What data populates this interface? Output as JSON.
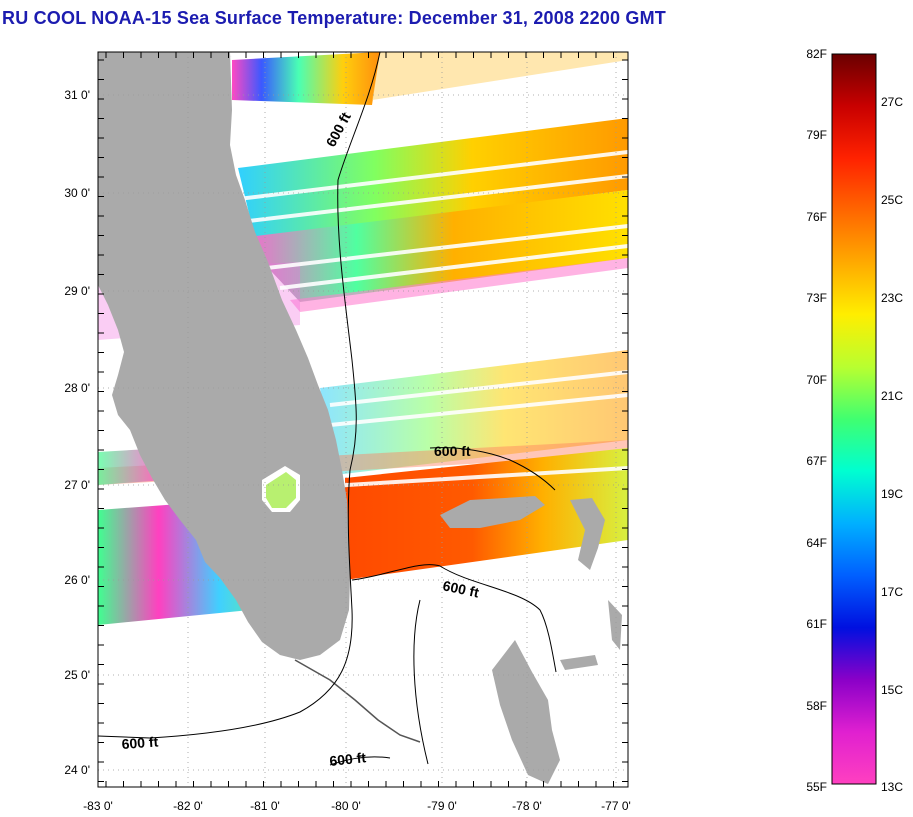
{
  "title": "RU COOL  NOAA-15  Sea Surface Temperature:  December 31, 2008 2200 GMT",
  "map": {
    "lat_labels": [
      "31 0'",
      "30 0'",
      "29 0'",
      "28 0'",
      "27 0'",
      "26 0'",
      "25 0'",
      "24 0'"
    ],
    "lon_labels": [
      "-83 0'",
      "-82 0'",
      "-81 0'",
      "-80 0'",
      "-79 0'",
      "-78 0'",
      "-77 0'"
    ],
    "contour_label": "600 ft",
    "colors": {
      "land": "#aaaaaa",
      "ocean_no_data": "#ffffff",
      "gridline": "#999999",
      "contour": "#000000"
    }
  },
  "colorbar": {
    "f_labels": [
      "82F",
      "79F",
      "76F",
      "73F",
      "70F",
      "67F",
      "64F",
      "61F",
      "58F",
      "55F"
    ],
    "c_labels": [
      "27C",
      "25C",
      "23C",
      "21C",
      "19C",
      "17C",
      "15C",
      "13C"
    ],
    "gradient_stops": [
      "#6a0000",
      "#c80000",
      "#ff2200",
      "#ff6600",
      "#ffaa00",
      "#ffee00",
      "#b8ff30",
      "#40ff70",
      "#00ffd0",
      "#00b0ff",
      "#0060ff",
      "#0010e0",
      "#8a00c8",
      "#e020d0",
      "#ff40c0"
    ]
  }
}
